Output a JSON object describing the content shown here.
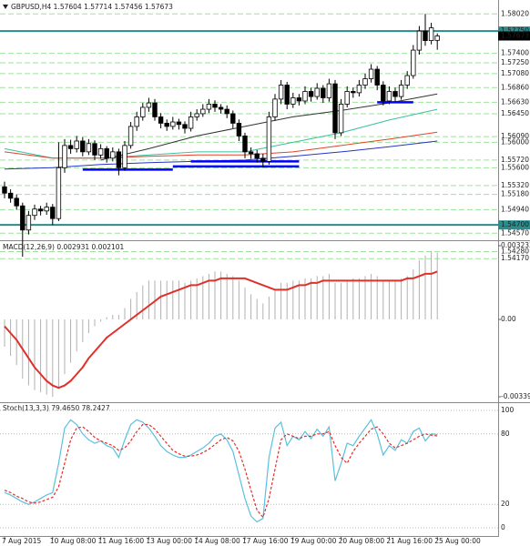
{
  "chart_data": [
    {
      "type": "candlestick",
      "title": "GBPUSD,H4 1.57604 1.57714 1.57456 1.57673",
      "candles": [
        [
          1.553,
          1.5538,
          1.5512,
          1.552
        ],
        [
          1.552,
          1.5526,
          1.5505,
          1.5512
        ],
        [
          1.5512,
          1.5518,
          1.5494,
          1.55
        ],
        [
          1.55,
          1.5505,
          1.542,
          1.5462
        ],
        [
          1.5462,
          1.5492,
          1.5455,
          1.5485
        ],
        [
          1.5485,
          1.5502,
          1.5478,
          1.5495
        ],
        [
          1.5495,
          1.55,
          1.5485,
          1.5492
        ],
        [
          1.5492,
          1.5505,
          1.5486,
          1.5498
        ],
        [
          1.5498,
          1.5503,
          1.547,
          1.548
        ],
        [
          1.548,
          1.56,
          1.5476,
          1.556
        ],
        [
          1.556,
          1.5605,
          1.5552,
          1.5595
        ],
        [
          1.5595,
          1.5604,
          1.5582,
          1.559
        ],
        [
          1.559,
          1.561,
          1.5584,
          1.5602
        ],
        [
          1.5602,
          1.5608,
          1.5578,
          1.5585
        ],
        [
          1.5585,
          1.5605,
          1.558,
          1.5598
        ],
        [
          1.5598,
          1.5603,
          1.5572,
          1.558
        ],
        [
          1.558,
          1.5597,
          1.5574,
          1.559
        ],
        [
          1.559,
          1.5594,
          1.5568,
          1.5575
        ],
        [
          1.5575,
          1.5592,
          1.557,
          1.5585
        ],
        [
          1.5585,
          1.559,
          1.5548,
          1.556
        ],
        [
          1.556,
          1.5602,
          1.5555,
          1.5595
        ],
        [
          1.5595,
          1.5632,
          1.559,
          1.5625
        ],
        [
          1.5625,
          1.5648,
          1.5618,
          1.564
        ],
        [
          1.564,
          1.5662,
          1.5634,
          1.5655
        ],
        [
          1.5655,
          1.567,
          1.5648,
          1.5662
        ],
        [
          1.5662,
          1.5668,
          1.5634,
          1.564
        ],
        [
          1.564,
          1.5646,
          1.5622,
          1.563
        ],
        [
          1.563,
          1.5636,
          1.5618,
          1.5625
        ],
        [
          1.5625,
          1.564,
          1.562,
          1.5632
        ],
        [
          1.5632,
          1.5637,
          1.562,
          1.5628
        ],
        [
          1.5628,
          1.5633,
          1.5614,
          1.5622
        ],
        [
          1.5622,
          1.5648,
          1.5617,
          1.564
        ],
        [
          1.564,
          1.5652,
          1.5634,
          1.5645
        ],
        [
          1.5645,
          1.566,
          1.564,
          1.5652
        ],
        [
          1.5652,
          1.5668,
          1.5646,
          1.566
        ],
        [
          1.566,
          1.5666,
          1.5648,
          1.5655
        ],
        [
          1.5655,
          1.566,
          1.5645,
          1.5652
        ],
        [
          1.5652,
          1.5658,
          1.5638,
          1.5645
        ],
        [
          1.5645,
          1.565,
          1.5622,
          1.563
        ],
        [
          1.563,
          1.5636,
          1.5602,
          1.561
        ],
        [
          1.561,
          1.5615,
          1.5575,
          1.5585
        ],
        [
          1.5585,
          1.5592,
          1.5574,
          1.5582
        ],
        [
          1.5582,
          1.5588,
          1.5568,
          1.5575
        ],
        [
          1.5575,
          1.5582,
          1.5562,
          1.557
        ],
        [
          1.557,
          1.5648,
          1.5565,
          1.564
        ],
        [
          1.564,
          1.5676,
          1.5634,
          1.5668
        ],
        [
          1.5668,
          1.5698,
          1.566,
          1.569
        ],
        [
          1.569,
          1.5695,
          1.5652,
          1.566
        ],
        [
          1.566,
          1.5678,
          1.5654,
          1.567
        ],
        [
          1.567,
          1.5676,
          1.5658,
          1.5665
        ],
        [
          1.5665,
          1.5688,
          1.566,
          1.568
        ],
        [
          1.568,
          1.5686,
          1.5664,
          1.5672
        ],
        [
          1.5672,
          1.5693,
          1.5667,
          1.5685
        ],
        [
          1.5685,
          1.569,
          1.5662,
          1.567
        ],
        [
          1.567,
          1.57,
          1.5664,
          1.5692
        ],
        [
          1.5692,
          1.5698,
          1.5605,
          1.5615
        ],
        [
          1.5615,
          1.5668,
          1.561,
          1.566
        ],
        [
          1.566,
          1.5688,
          1.5655,
          1.568
        ],
        [
          1.568,
          1.5686,
          1.567,
          1.5678
        ],
        [
          1.5678,
          1.5698,
          1.5672,
          1.569
        ],
        [
          1.569,
          1.5708,
          1.5684,
          1.57
        ],
        [
          1.57,
          1.5723,
          1.5694,
          1.5715
        ],
        [
          1.5715,
          1.572,
          1.5682,
          1.569
        ],
        [
          1.569,
          1.5696,
          1.5658,
          1.5665
        ],
        [
          1.5665,
          1.5688,
          1.566,
          1.568
        ],
        [
          1.568,
          1.5686,
          1.5664,
          1.5672
        ],
        [
          1.5672,
          1.5698,
          1.5667,
          1.569
        ],
        [
          1.569,
          1.5712,
          1.5684,
          1.5705
        ],
        [
          1.5705,
          1.5753,
          1.57,
          1.5745
        ],
        [
          1.5745,
          1.5783,
          1.5738,
          1.5775
        ],
        [
          1.5775,
          1.5802,
          1.5752,
          1.576
        ],
        [
          1.576,
          1.5788,
          1.5754,
          1.578
        ],
        [
          1.57604,
          1.57714,
          1.57456,
          1.57673
        ]
      ],
      "up_color": "#ffffff",
      "down_color": "#000000",
      "ylim": [
        1.5413,
        1.5821
      ],
      "yticks": [
        {
          "value": 1.5802,
          "label": "1.58020"
        },
        {
          "value": 1.574,
          "label": "1.57400"
        },
        {
          "value": 1.5725,
          "label": "1.57250"
        },
        {
          "value": 1.5708,
          "label": "1.57080"
        },
        {
          "value": 1.5686,
          "label": "1.56860"
        },
        {
          "value": 1.5663,
          "label": "1.56630"
        },
        {
          "value": 1.5645,
          "label": "1.56450"
        },
        {
          "value": 1.5609,
          "label": "1.56090"
        },
        {
          "value": 1.56,
          "label": "1.56000"
        },
        {
          "value": 1.5572,
          "label": "1.55720"
        },
        {
          "value": 1.556,
          "label": "1.55600"
        },
        {
          "value": 1.5532,
          "label": "1.55320"
        },
        {
          "value": 1.5518,
          "label": "1.55180"
        },
        {
          "value": 1.5494,
          "label": "1.54940"
        },
        {
          "value": 1.5457,
          "label": "1.54570"
        },
        {
          "value": 1.5428,
          "label": "1.54280"
        },
        {
          "value": 1.5417,
          "label": "1.54170"
        }
      ],
      "grid": true,
      "grid_color": "#9fe29f",
      "levels": [
        {
          "value": 1.5775,
          "label": "1.57750"
        },
        {
          "value": 1.547,
          "label": "1.54700"
        }
      ],
      "level_color": "#2a8c8c",
      "support_lines": [
        {
          "x": [
            13,
            28
          ],
          "value": 1.5557
        },
        {
          "x": [
            28,
            49
          ],
          "value": 1.5562
        },
        {
          "x": [
            31,
            49
          ],
          "value": 1.557
        },
        {
          "x": [
            62,
            68
          ],
          "value": 1.5663
        }
      ],
      "support_color": "#0000ff",
      "moving_averages": {
        "x": [
          0,
          8,
          16,
          24,
          32,
          40,
          48,
          56,
          64,
          72
        ],
        "series": [
          {
            "color": "#333333",
            "values": [
              null,
              null,
              1.5572,
              1.559,
              1.561,
              1.5625,
              1.564,
              1.565,
              1.5662,
              1.5676
            ]
          },
          {
            "color": "#3cc0a0",
            "values": [
              1.559,
              1.5575,
              1.5575,
              1.558,
              1.5585,
              1.5585,
              1.56,
              1.5615,
              1.5635,
              1.5652
            ]
          },
          {
            "color": "#e0452b",
            "values": [
              1.5585,
              1.5575,
              1.5575,
              1.5578,
              1.558,
              1.558,
              1.5585,
              1.5595,
              1.5605,
              1.5616
            ]
          },
          {
            "color": "#2733c8",
            "values": [
              1.5558,
              1.556,
              1.5565,
              1.5568,
              1.557,
              1.5572,
              1.5578,
              1.5585,
              1.5593,
              1.5602
            ]
          }
        ]
      }
    },
    {
      "type": "macd",
      "title": "MACD(12,26,9) 0.002931 0.002101",
      "histogram": [
        -0.0012,
        -0.0016,
        -0.002,
        -0.0026,
        -0.0029,
        -0.0031,
        -0.0032,
        -0.0033,
        -0.0034,
        -0.003,
        -0.0024,
        -0.0019,
        -0.0014,
        -0.001,
        -0.0006,
        -0.0003,
        -0.0001,
        0.0001,
        0.0002,
        0.0002,
        0.0005,
        0.0009,
        0.0012,
        0.0015,
        0.0017,
        0.0017,
        0.0017,
        0.0017,
        0.0017,
        0.0017,
        0.0016,
        0.0017,
        0.0018,
        0.0019,
        0.002,
        0.0021,
        0.0021,
        0.002,
        0.0019,
        0.0017,
        0.0014,
        0.0011,
        0.0009,
        0.0007,
        0.001,
        0.0013,
        0.0016,
        0.0016,
        0.0017,
        0.0017,
        0.0018,
        0.0018,
        0.0019,
        0.0019,
        0.002,
        0.0016,
        0.0016,
        0.0017,
        0.0018,
        0.0018,
        0.0019,
        0.002,
        0.0019,
        0.0017,
        0.0017,
        0.0017,
        0.0018,
        0.0019,
        0.0022,
        0.0026,
        0.0028,
        0.003,
        0.002931
      ],
      "signal": [
        -0.0003,
        -0.0006,
        -0.0009,
        -0.0013,
        -0.0017,
        -0.0021,
        -0.0024,
        -0.0027,
        -0.0029,
        -0.003,
        -0.0029,
        -0.0027,
        -0.0024,
        -0.0021,
        -0.0017,
        -0.0014,
        -0.0011,
        -0.0008,
        -0.0006,
        -0.0004,
        -0.0002,
        0,
        0.0002,
        0.0004,
        0.0006,
        0.0008,
        0.001,
        0.0011,
        0.0012,
        0.0013,
        0.0014,
        0.0015,
        0.0015,
        0.0016,
        0.0017,
        0.0017,
        0.0018,
        0.0018,
        0.0018,
        0.0018,
        0.0018,
        0.0017,
        0.0016,
        0.0015,
        0.0014,
        0.0013,
        0.0013,
        0.0013,
        0.0014,
        0.0015,
        0.0015,
        0.0016,
        0.0016,
        0.0017,
        0.0017,
        0.0017,
        0.0017,
        0.0017,
        0.0017,
        0.0017,
        0.0017,
        0.0017,
        0.0017,
        0.0017,
        0.0017,
        0.0017,
        0.0017,
        0.0018,
        0.0018,
        0.0019,
        0.002,
        0.002,
        0.002101
      ],
      "histogram_color": "#b0b0b0",
      "signal_color": "#e0302a",
      "ylim": [
        -0.003393,
        0.003233
      ],
      "yticks": [
        0.003233,
        {
          "value": 0,
          "label": "0.00"
        },
        -0.003393
      ]
    },
    {
      "type": "stochastic",
      "title": "Stoch(13,3,3) 79.4650 78.2427",
      "main": [
        30,
        28,
        25,
        22,
        20,
        22,
        25,
        28,
        30,
        55,
        85,
        92,
        88,
        80,
        75,
        72,
        74,
        70,
        68,
        60,
        75,
        88,
        92,
        90,
        85,
        78,
        70,
        65,
        62,
        60,
        60,
        62,
        65,
        68,
        72,
        78,
        80,
        75,
        65,
        45,
        25,
        10,
        5,
        8,
        60,
        85,
        90,
        70,
        78,
        75,
        82,
        76,
        84,
        78,
        86,
        40,
        55,
        72,
        70,
        78,
        85,
        92,
        80,
        62,
        70,
        66,
        75,
        72,
        82,
        85,
        74,
        80,
        79.465
      ],
      "signal": [
        32,
        30,
        27,
        25,
        22,
        21,
        22,
        24,
        26,
        35,
        55,
        75,
        85,
        86,
        82,
        77,
        74,
        72,
        70,
        66,
        68,
        74,
        82,
        88,
        88,
        84,
        78,
        72,
        66,
        63,
        61,
        61,
        62,
        64,
        67,
        71,
        75,
        77,
        74,
        65,
        50,
        32,
        15,
        9,
        25,
        50,
        75,
        80,
        78,
        76,
        78,
        78,
        80,
        80,
        82,
        70,
        60,
        55,
        65,
        72,
        78,
        84,
        86,
        80,
        72,
        68,
        70,
        72,
        75,
        78,
        80,
        79,
        78.2427
      ],
      "main_color": "#5bc0de",
      "signal_color": "#e0302a",
      "ylim": [
        0,
        100
      ],
      "yticks": [
        100,
        80,
        20,
        0
      ],
      "categories": [
        "7 Aug 2015",
        null,
        null,
        null,
        null,
        null,
        null,
        null,
        "10 Aug 08:00",
        null,
        null,
        null,
        null,
        null,
        null,
        null,
        "11 Aug 16:00",
        null,
        null,
        null,
        null,
        null,
        null,
        null,
        "13 Aug 00:00",
        null,
        null,
        null,
        null,
        null,
        null,
        null,
        "14 Aug 08:00",
        null,
        null,
        null,
        null,
        null,
        null,
        null,
        "17 Aug 16:00",
        null,
        null,
        null,
        null,
        null,
        null,
        null,
        "19 Aug 00:00",
        null,
        null,
        null,
        null,
        null,
        null,
        null,
        "20 Aug 08:00",
        null,
        null,
        null,
        null,
        null,
        null,
        null,
        "21 Aug 16:00",
        null,
        null,
        null,
        null,
        null,
        null,
        null,
        "25 Aug 00:00"
      ]
    }
  ]
}
